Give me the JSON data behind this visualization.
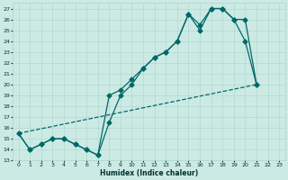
{
  "xlabel": "Humidex (Indice chaleur)",
  "bg_color": "#cceae4",
  "grid_color": "#aad4cc",
  "line_color": "#006868",
  "xlim": [
    -0.5,
    23.5
  ],
  "ylim": [
    13,
    27.5
  ],
  "yticks": [
    13,
    14,
    15,
    16,
    17,
    18,
    19,
    20,
    21,
    22,
    23,
    24,
    25,
    26,
    27
  ],
  "xticks": [
    0,
    1,
    2,
    3,
    4,
    5,
    6,
    7,
    8,
    9,
    10,
    11,
    12,
    13,
    14,
    15,
    16,
    17,
    18,
    19,
    20,
    21,
    22,
    23
  ],
  "line1_x": [
    0,
    1,
    2,
    3,
    4,
    5,
    6,
    7,
    8,
    9,
    10,
    11,
    12,
    13,
    14,
    15,
    16,
    17,
    18,
    19,
    20,
    21
  ],
  "line1_y": [
    15.5,
    14.0,
    14.5,
    15.0,
    15.0,
    14.5,
    14.0,
    13.5,
    16.5,
    19.0,
    20.0,
    21.5,
    22.5,
    23.0,
    24.0,
    26.5,
    25.0,
    27.0,
    27.0,
    26.0,
    24.0,
    20.0
  ],
  "line2_x": [
    0,
    1,
    2,
    3,
    4,
    5,
    6,
    7,
    8,
    9,
    10,
    11,
    12,
    13,
    14,
    15,
    16,
    17,
    18,
    19,
    20,
    21
  ],
  "line2_y": [
    15.5,
    14.0,
    14.5,
    15.0,
    15.0,
    14.5,
    14.0,
    13.5,
    19.0,
    19.5,
    20.5,
    21.5,
    22.5,
    23.0,
    24.0,
    26.5,
    25.5,
    27.0,
    27.0,
    26.0,
    26.0,
    20.0
  ],
  "line3_x": [
    0,
    21
  ],
  "line3_y": [
    15.5,
    20.0
  ],
  "marker_size": 2.5,
  "linewidth": 0.9
}
